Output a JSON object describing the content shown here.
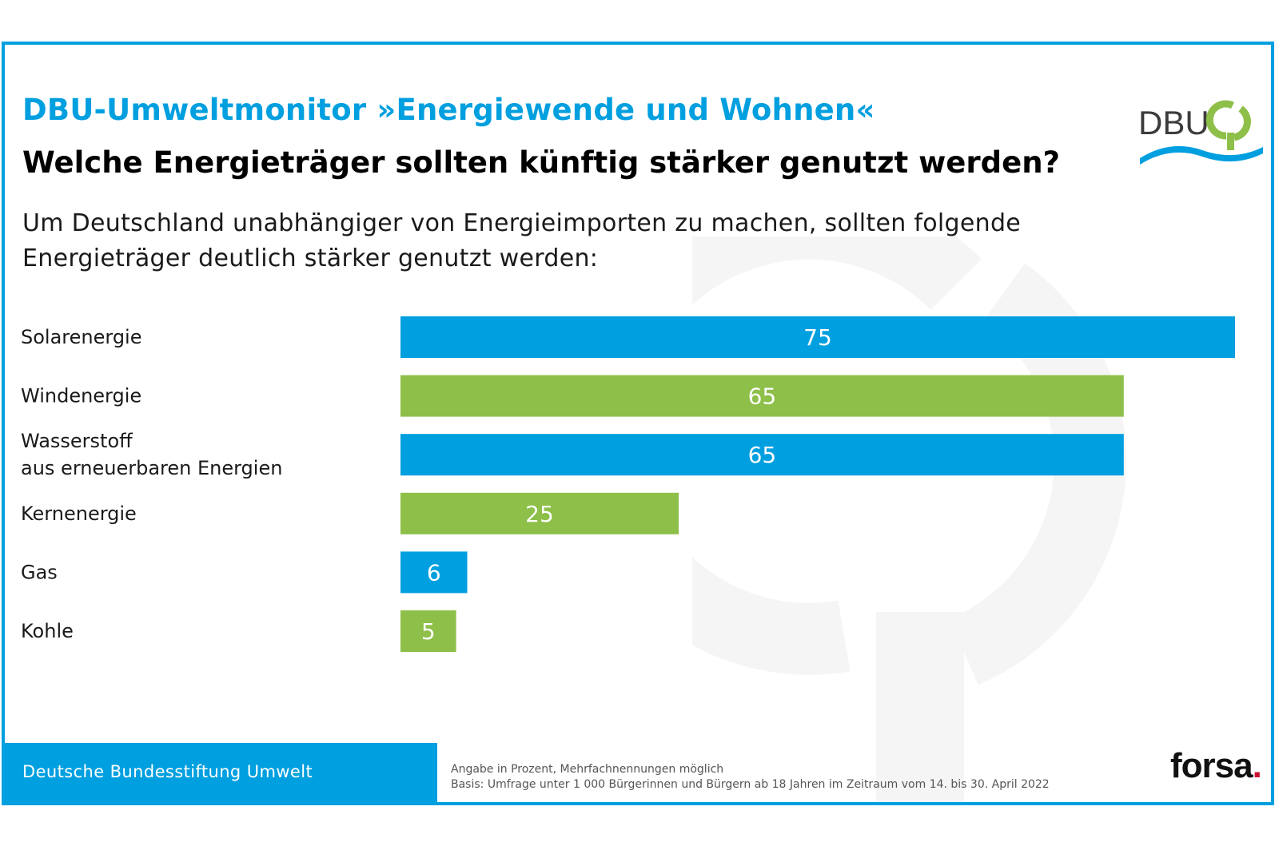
{
  "header": {
    "kicker": "DBU-Umweltmonitor »Energiewende und Wohnen«",
    "headline": "Welche Energieträger sollten künftig stärker genutzt werden?",
    "intro": "Um Deutschland unabhängiger von Energieimporten zu machen, sollten folgende Energieträger deutlich stärker genutzt werden:"
  },
  "logo": {
    "text": "DBU",
    "icon": "dbu-tree-icon"
  },
  "colors": {
    "blue": "#009fdf",
    "green": "#8dbf49",
    "text": "#1a1a1a",
    "watermark": "#f5f5f5"
  },
  "chart_data": {
    "type": "bar",
    "orientation": "horizontal",
    "unit": "percent",
    "categories": [
      "Solarenergie",
      "Windenergie",
      "Wasserstoff aus erneuerbaren Energien",
      "Kernenergie",
      "Gas",
      "Kohle"
    ],
    "category_lines": [
      [
        "Solarenergie"
      ],
      [
        "Windenergie"
      ],
      [
        "Wasserstoff",
        "aus erneuerbaren Energien"
      ],
      [
        "Kernenergie"
      ],
      [
        "Gas"
      ],
      [
        "Kohle"
      ]
    ],
    "values": [
      75,
      65,
      65,
      25,
      6,
      5
    ],
    "bar_colors": [
      "#009fdf",
      "#8dbf49",
      "#009fdf",
      "#8dbf49",
      "#009fdf",
      "#8dbf49"
    ],
    "xlim": [
      0,
      75
    ],
    "title": "Welche Energieträger sollten künftig stärker genutzt werden?",
    "xlabel": "",
    "ylabel": "",
    "grid": false
  },
  "footer": {
    "org": "Deutsche Bundesstiftung Umwelt",
    "note1": "Angabe in Prozent, Mehrfachnennungen möglich",
    "note2": "Basis: Umfrage unter 1 000 Bürgerinnen und Bürgern ab 18 Jahren im Zeitraum vom 14. bis 30. April 2022",
    "source": "forsa",
    "source_dot": "."
  }
}
